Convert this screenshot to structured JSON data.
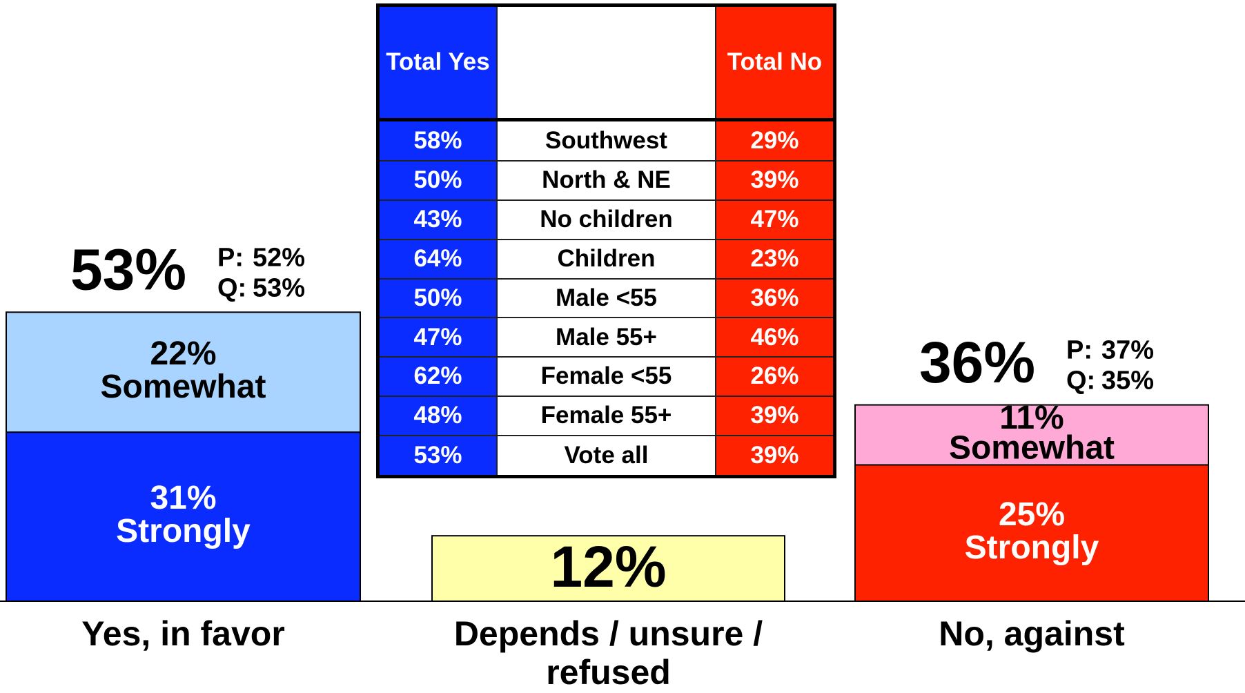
{
  "chart_data": {
    "type": "bar",
    "categories": [
      "Yes, in favor",
      "Depends / unsure / refused",
      "No, against"
    ],
    "totals": [
      53,
      12,
      36
    ],
    "total_labels": [
      "53%",
      "12%",
      "36%"
    ],
    "total_colors": [
      null,
      "#ffffaa",
      null
    ],
    "series": [
      {
        "name": "Strongly",
        "values": [
          31,
          null,
          25
        ],
        "value_labels": [
          "31%",
          null,
          "25%"
        ],
        "colors": [
          "#0a2cff",
          null,
          "#ff2200"
        ]
      },
      {
        "name": "Somewhat",
        "values": [
          22,
          null,
          11
        ],
        "value_labels": [
          "22%",
          null,
          "11%"
        ],
        "colors": [
          "#a8d4ff",
          null,
          "#ffaad6"
        ]
      }
    ],
    "subgroups": [
      {
        "label": "P:",
        "values": [
          52,
          null,
          37
        ],
        "value_labels": [
          "52%",
          null,
          "37%"
        ]
      },
      {
        "label": "Q:",
        "values": [
          53,
          null,
          35
        ],
        "value_labels": [
          "53%",
          null,
          "35%"
        ]
      }
    ],
    "ylim": [
      0,
      110
    ]
  },
  "table": {
    "headers": {
      "yes": "Total Yes",
      "no": "Total No"
    },
    "rows": [
      {
        "label": "Southwest",
        "yes": "58%",
        "no": "29%"
      },
      {
        "label": "North & NE",
        "yes": "50%",
        "no": "39%"
      },
      {
        "label": "No children",
        "yes": "43%",
        "no": "47%"
      },
      {
        "label": "Children",
        "yes": "64%",
        "no": "23%"
      },
      {
        "label": "Male <55",
        "yes": "50%",
        "no": "36%"
      },
      {
        "label": "Male 55+",
        "yes": "47%",
        "no": "46%"
      },
      {
        "label": "Female <55",
        "yes": "62%",
        "no": "26%"
      },
      {
        "label": "Female 55+",
        "yes": "48%",
        "no": "39%"
      },
      {
        "label": "Vote all",
        "yes": "53%",
        "no": "39%"
      }
    ]
  }
}
